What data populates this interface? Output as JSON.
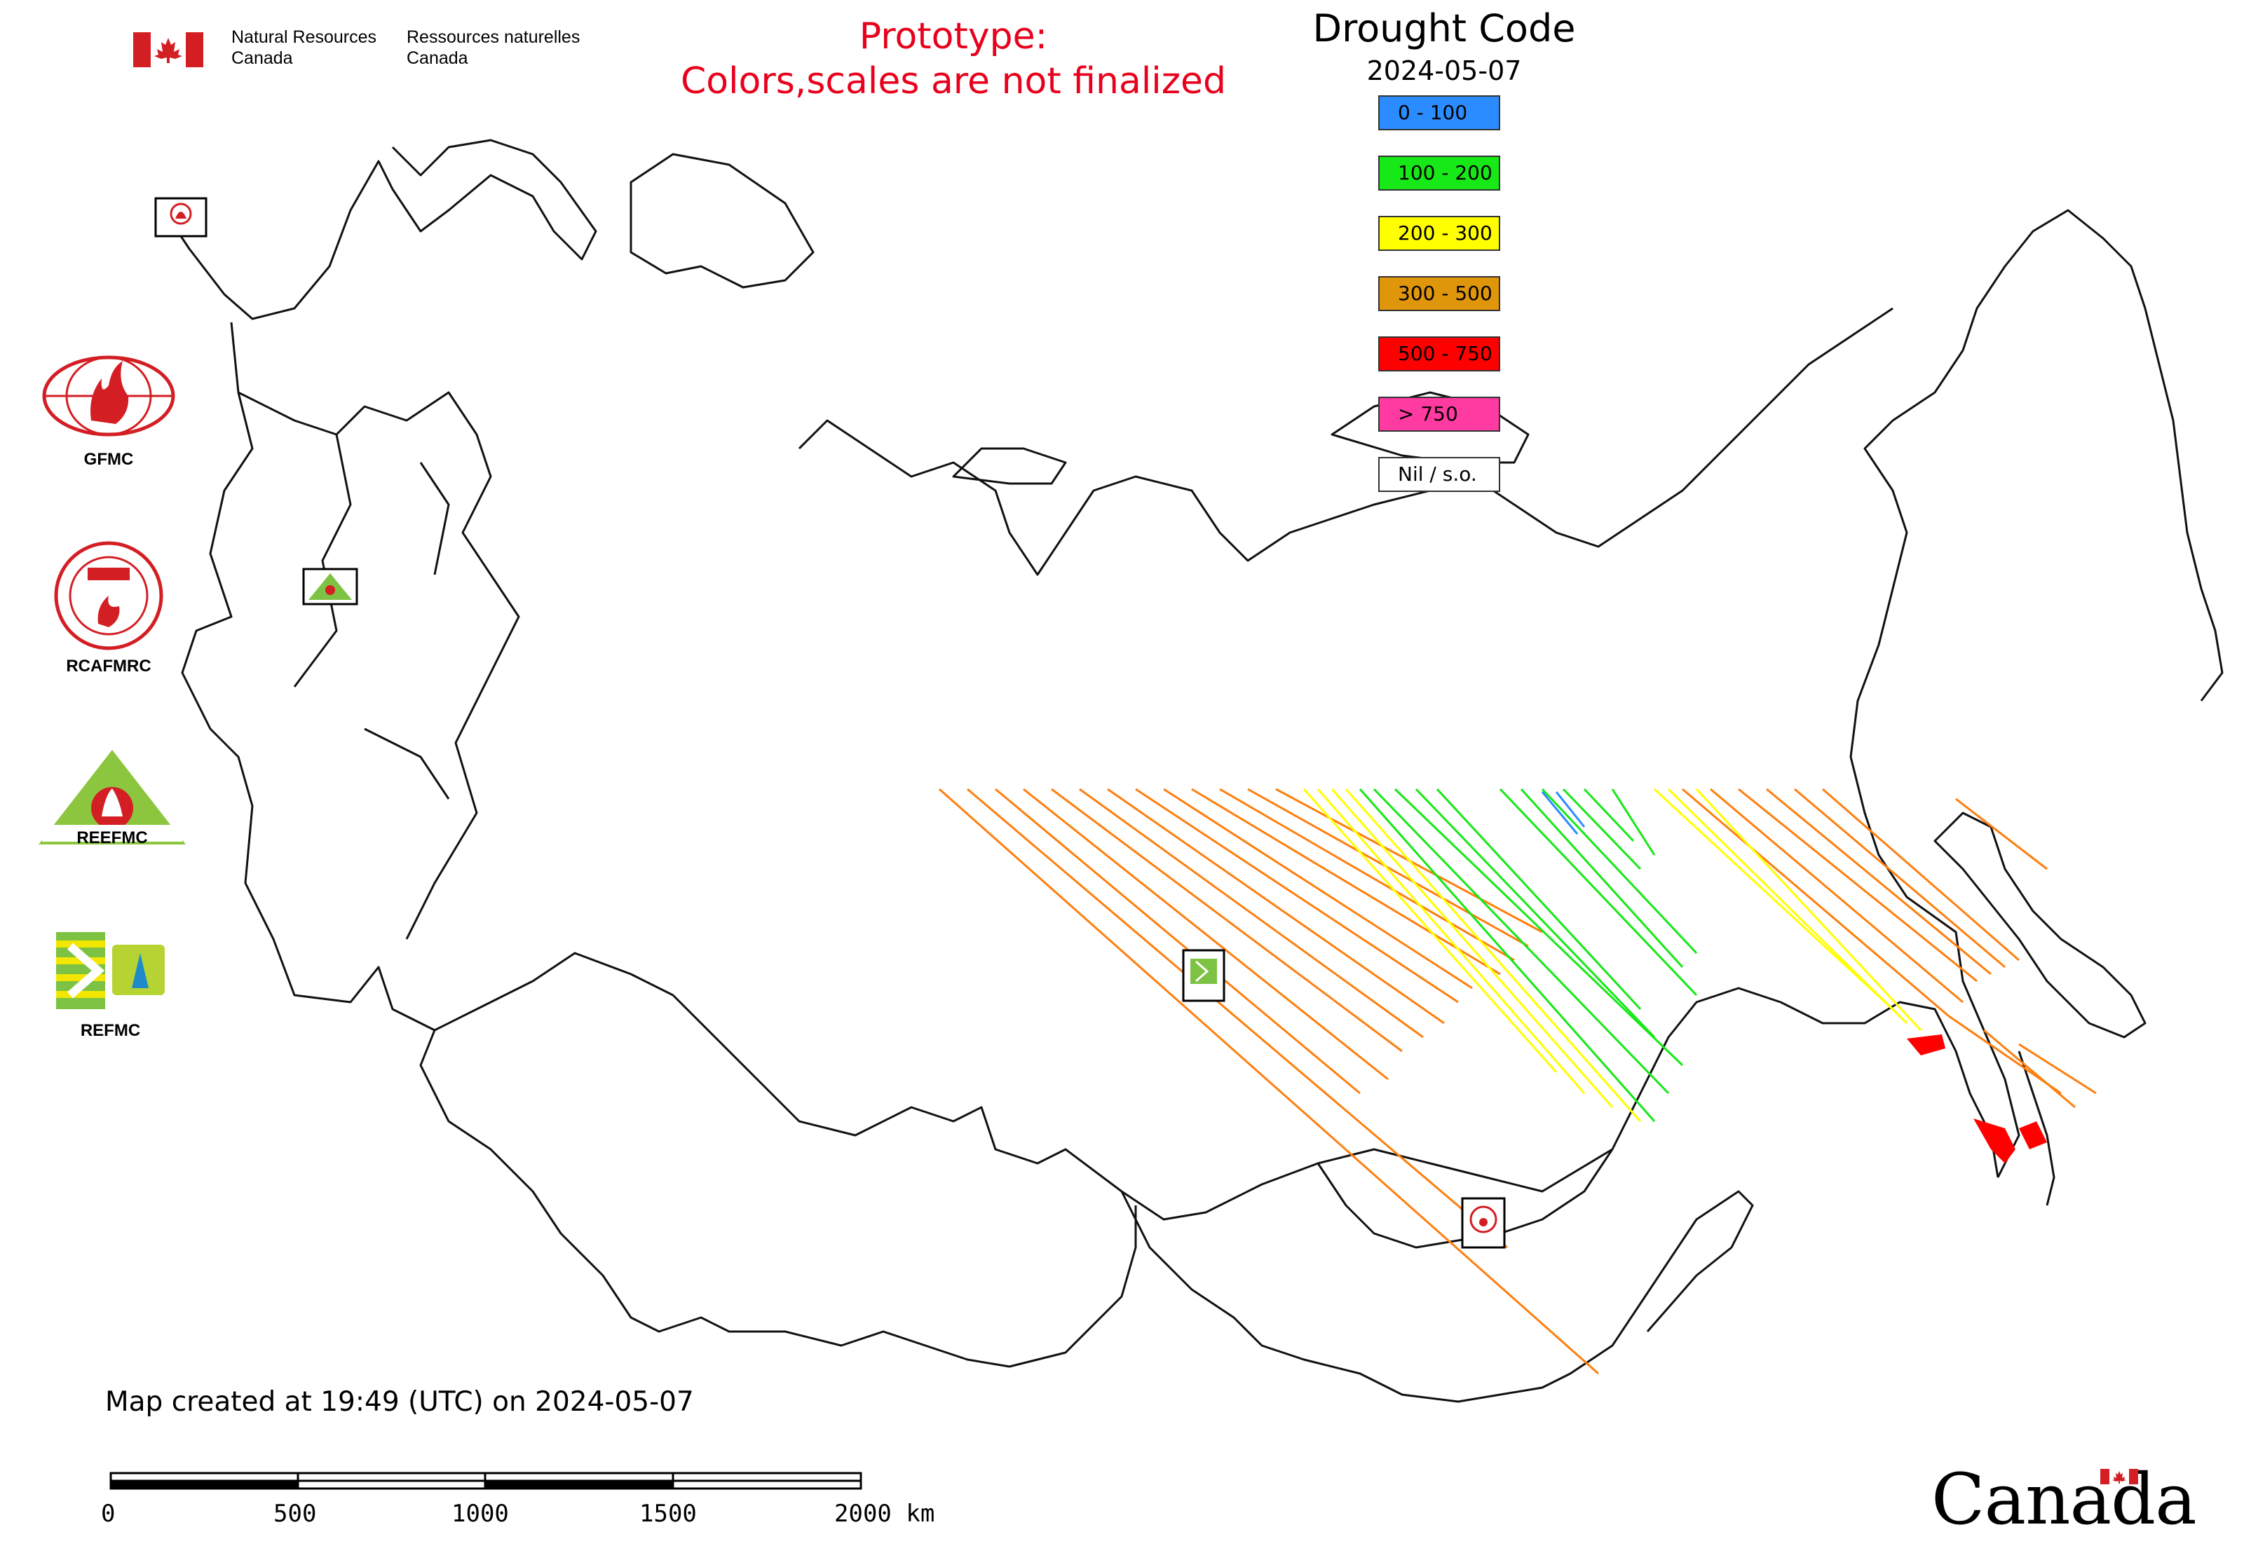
{
  "header": {
    "org_en": [
      "Natural Resources",
      "Canada"
    ],
    "org_fr": [
      "Ressources naturelles",
      "Canada"
    ],
    "prototype_line1": "Prototype:",
    "prototype_line2": "Colors,scales are not finalized"
  },
  "legend": {
    "title": "Drought Code",
    "date": "2024-05-07",
    "classes": [
      {
        "label": "0 - 100",
        "color": "#2b8cff"
      },
      {
        "label": "100 - 200",
        "color": "#17e817"
      },
      {
        "label": "200 - 300",
        "color": "#ffff00"
      },
      {
        "label": "300 - 500",
        "color": "#e0960a"
      },
      {
        "label": "500 - 750",
        "color": "#ff0000"
      },
      {
        "label": "> 750",
        "color": "#ff3aa0"
      },
      {
        "label": "Nil / s.o.",
        "color": "#ffffff"
      }
    ]
  },
  "centers": [
    {
      "label": "GFMC"
    },
    {
      "label": "RCAFMRC"
    },
    {
      "label": "REEFMC"
    },
    {
      "label": "REFMC"
    }
  ],
  "footer": {
    "timestamp": "Map created at 19:49 (UTC) on 2024-05-07",
    "wordmark": "Canada"
  },
  "scalebar": {
    "labels": [
      "0",
      "500",
      "1000",
      "1500",
      "2000 km"
    ]
  },
  "colors": {
    "prototype_text": "#e8001c",
    "series_orange": "#ff7f0e",
    "series_green": "#17e817",
    "series_yellow": "#ffff00",
    "series_blue": "#2b8cff",
    "series_red": "#ff0000"
  }
}
